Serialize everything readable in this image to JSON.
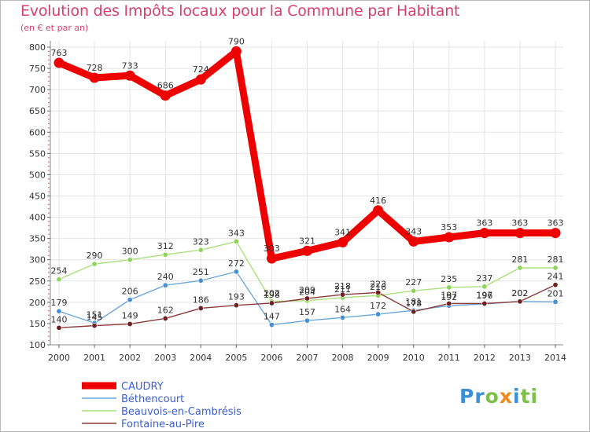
{
  "title": "Evolution des Impôts locaux pour la Commune par Habitant",
  "subtitle": "(en € et par an)",
  "brand": {
    "parts": [
      {
        "text": "Pr",
        "color": "#3a8fd6"
      },
      {
        "text": "o",
        "color": "#7cc04a"
      },
      {
        "text": "x",
        "color": "#f08a1e"
      },
      {
        "text": "i",
        "color": "#3a8fd6"
      },
      {
        "text": "ti",
        "color": "#7cc04a"
      }
    ]
  },
  "chart_data": {
    "type": "line",
    "title": "Evolution des Impôts locaux pour la Commune par Habitant",
    "ylabel": "(en € et par an)",
    "xlabel": "",
    "ylim": [
      100,
      800
    ],
    "ytick_step": 50,
    "grid": true,
    "legend_position": "bottom-left",
    "x": [
      "2000",
      "2001",
      "2002",
      "2003",
      "2004",
      "2005",
      "2006",
      "2007",
      "2008",
      "2009",
      "2010",
      "2011",
      "2012",
      "2013",
      "2014"
    ],
    "series": [
      {
        "name": "CAUDRY",
        "color": "#ee0000",
        "dot_color": "#ee0000",
        "emphasis": true,
        "values": [
          763,
          728,
          733,
          686,
          724,
          790,
          303,
          321,
          341,
          416,
          343,
          353,
          363,
          363,
          363
        ],
        "labels": [
          "763",
          "728",
          "733",
          "686",
          "724",
          "790",
          "303",
          "321",
          "341",
          "416",
          "343",
          "353",
          "363",
          "363",
          "363"
        ]
      },
      {
        "name": "Béthencourt",
        "color": "#6aa6dc",
        "dot_color": "#4a8fd0",
        "emphasis": false,
        "values": [
          179,
          151,
          206,
          240,
          251,
          272,
          147,
          157,
          164,
          172,
          181,
          192,
          196,
          202,
          201
        ],
        "labels": [
          "179",
          "151",
          "206",
          "240",
          "251",
          "272",
          "147",
          "157",
          "164",
          "172",
          "181",
          "192",
          "196",
          "202",
          "201"
        ]
      },
      {
        "name": "Beauvois-en-Cambrésis",
        "color": "#a8e07a",
        "dot_color": "#8fd45a",
        "emphasis": false,
        "values": [
          254,
          290,
          300,
          312,
          323,
          343,
          202,
          204,
          211,
          216,
          227,
          235,
          237,
          281,
          281
        ],
        "labels": [
          "254",
          "290",
          "300",
          "312",
          "323",
          "343",
          "202",
          "204",
          "211",
          "216",
          "227",
          "235",
          "237",
          "281",
          "281"
        ]
      },
      {
        "name": "Fontaine-au-Pire",
        "color": "#8b3a3a",
        "dot_color": "#6e1f1f",
        "emphasis": false,
        "values": [
          140,
          145,
          149,
          162,
          186,
          193,
          198,
          209,
          218,
          223,
          178,
          197,
          197,
          202,
          241
        ],
        "labels": [
          "140",
          "145",
          "149",
          "162",
          "186",
          "193",
          "198",
          "209",
          "218",
          "223",
          "178",
          "197",
          "197",
          "202",
          "241"
        ]
      }
    ]
  }
}
